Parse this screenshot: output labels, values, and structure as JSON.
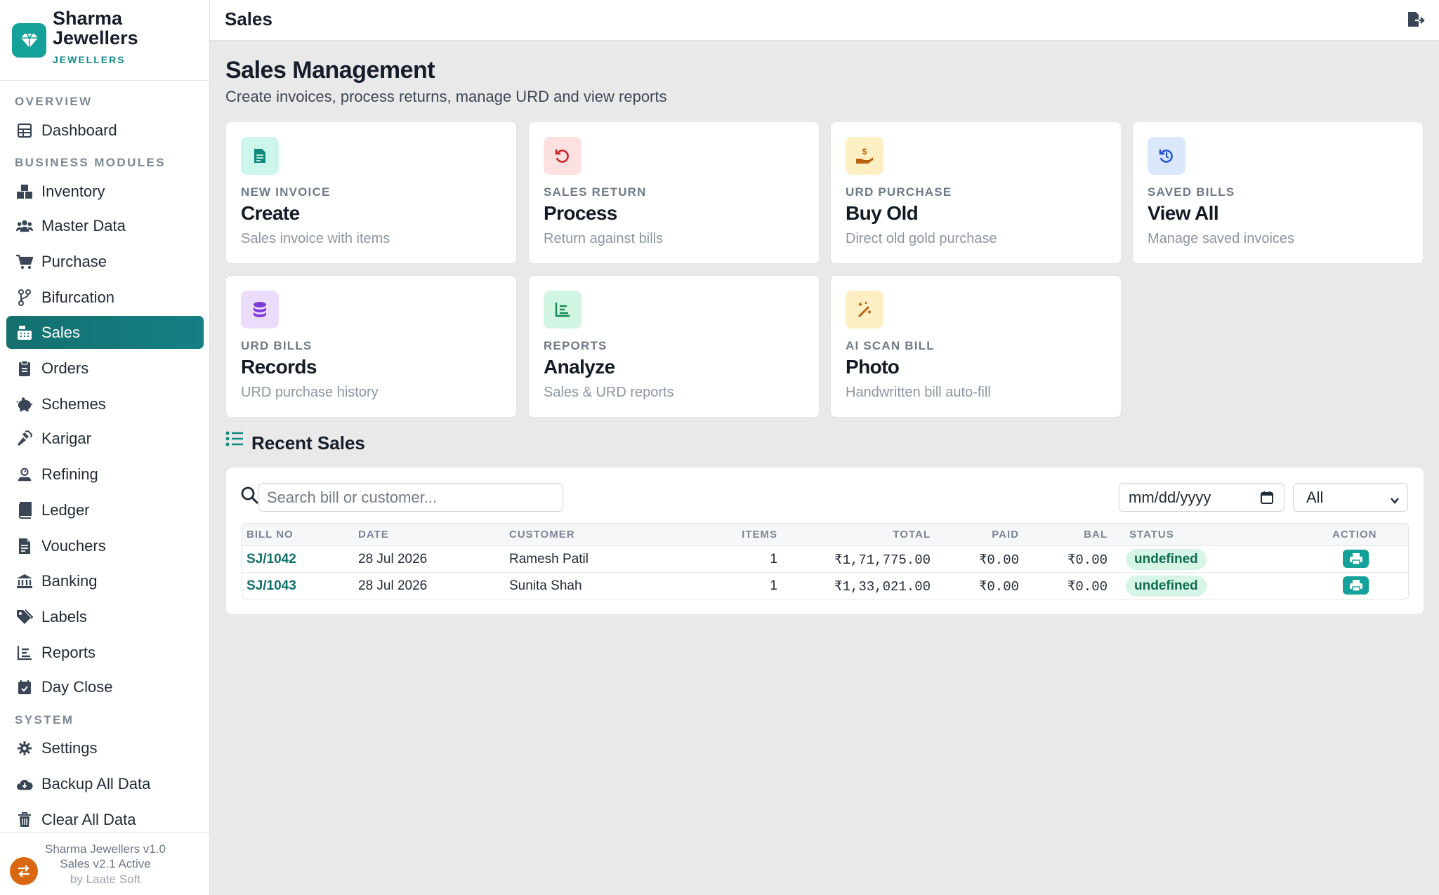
{
  "brand": {
    "name": "Sharma Jewellers",
    "sub": "JEWELLERS"
  },
  "sidebar": {
    "sections": {
      "overview": "OVERVIEW",
      "business": "BUSINESS MODULES",
      "system": "SYSTEM"
    },
    "items": [
      {
        "label": "Dashboard",
        "icon": "grid-icon"
      },
      {
        "label": "Inventory",
        "icon": "boxes-icon"
      },
      {
        "label": "Master Data",
        "icon": "users-icon"
      },
      {
        "label": "Purchase",
        "icon": "cart-icon"
      },
      {
        "label": "Bifurcation",
        "icon": "branch-icon"
      },
      {
        "label": "Sales",
        "icon": "cash-register-icon",
        "active": true
      },
      {
        "label": "Orders",
        "icon": "clipboard-icon"
      },
      {
        "label": "Schemes",
        "icon": "piggy-bank-icon"
      },
      {
        "label": "Karigar",
        "icon": "hammer-icon"
      },
      {
        "label": "Refining",
        "icon": "scale-icon"
      },
      {
        "label": "Ledger",
        "icon": "book-icon"
      },
      {
        "label": "Vouchers",
        "icon": "receipt-icon"
      },
      {
        "label": "Banking",
        "icon": "bank-icon"
      },
      {
        "label": "Labels",
        "icon": "tags-icon"
      },
      {
        "label": "Reports",
        "icon": "chart-icon"
      },
      {
        "label": "Day Close",
        "icon": "calendar-check-icon"
      },
      {
        "label": "Settings",
        "icon": "gear-icon"
      },
      {
        "label": "Backup All Data",
        "icon": "cloud-download-icon"
      },
      {
        "label": "Clear All Data",
        "icon": "trash-icon"
      }
    ],
    "footer": {
      "line1": "Sharma Jewellers v1.0",
      "line2": "Sales v2.1 Active",
      "line3": "by Laate Soft"
    }
  },
  "topbar": {
    "title": "Sales"
  },
  "main": {
    "title": "Sales Management",
    "subtitle": "Create invoices, process returns, manage URD and view reports",
    "cards": [
      {
        "kicker": "NEW INVOICE",
        "title": "Create",
        "sub": "Sales invoice with items",
        "icon": "invoice-icon",
        "bg": "#ccf5ec",
        "fg": "#0f8a7d"
      },
      {
        "kicker": "SALES RETURN",
        "title": "Process",
        "sub": "Return against bills",
        "icon": "undo-icon",
        "bg": "#fde0e0",
        "fg": "#c8262b"
      },
      {
        "kicker": "URD PURCHASE",
        "title": "Buy Old",
        "sub": "Direct old gold purchase",
        "icon": "hand-coin-icon",
        "bg": "#fdefc4",
        "fg": "#b5630e"
      },
      {
        "kicker": "SAVED BILLS",
        "title": "View All",
        "sub": "Manage saved invoices",
        "icon": "history-icon",
        "bg": "#dbe7fd",
        "fg": "#2456d6"
      },
      {
        "kicker": "URD BILLS",
        "title": "Records",
        "sub": "URD purchase history",
        "icon": "coins-icon",
        "bg": "#ecdcfb",
        "fg": "#7c3ad6"
      },
      {
        "kicker": "REPORTS",
        "title": "Analyze",
        "sub": "Sales & URD reports",
        "icon": "chart-icon",
        "bg": "#d2f4e2",
        "fg": "#128a58"
      },
      {
        "kicker": "AI SCAN BILL",
        "title": "Photo",
        "sub": "Handwritten bill auto-fill",
        "icon": "magic-wand-icon",
        "bg": "#fdefc4",
        "fg": "#b5630e"
      }
    ],
    "recent": {
      "title": "Recent Sales",
      "search_placeholder": "Search bill or customer...",
      "date_placeholder": "mm/dd/yyyy",
      "filter_value": "All",
      "columns": [
        "BILL NO",
        "DATE",
        "CUSTOMER",
        "ITEMS",
        "TOTAL",
        "PAID",
        "BAL",
        "STATUS",
        "ACTION"
      ],
      "rows": [
        {
          "bill": "SJ/1042",
          "date": "28 Jul 2026",
          "customer": "Ramesh Patil",
          "items": "1",
          "total": "₹1,71,775.00",
          "paid": "₹0.00",
          "bal": "₹0.00",
          "status": "undefined"
        },
        {
          "bill": "SJ/1043",
          "date": "28 Jul 2026",
          "customer": "Sunita Shah",
          "items": "1",
          "total": "₹1,33,021.00",
          "paid": "₹0.00",
          "bal": "₹0.00",
          "status": "undefined"
        }
      ]
    }
  },
  "colors": {
    "accent": "#14a199",
    "active_nav": "#157a7e",
    "badge_bg": "#d6f5e7"
  }
}
